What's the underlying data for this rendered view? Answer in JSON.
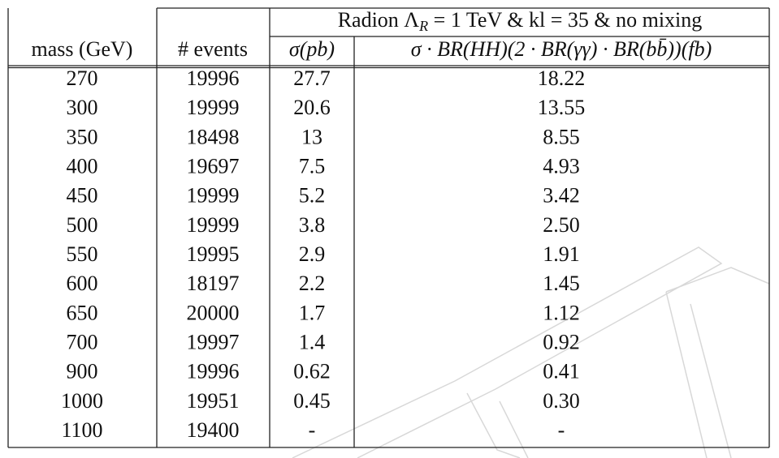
{
  "table": {
    "group_header": [
      "Radion Λ",
      "R",
      " = 1 TeV & kl = 35 & no mixing"
    ],
    "columns": [
      "mass (GeV)",
      "# events",
      "σ(pb)",
      "σ · BR(HH)(2 · BR(γγ) · BR(bb̄))(fb)"
    ],
    "rows": [
      [
        "270",
        "19996",
        "27.7",
        "18.22"
      ],
      [
        "300",
        "19999",
        "20.6",
        "13.55"
      ],
      [
        "350",
        "18498",
        "13",
        "8.55"
      ],
      [
        "400",
        "19697",
        "7.5",
        "4.93"
      ],
      [
        "450",
        "19999",
        "5.2",
        "3.42"
      ],
      [
        "500",
        "19999",
        "3.8",
        "2.50"
      ],
      [
        "550",
        "19995",
        "2.9",
        "1.91"
      ],
      [
        "600",
        "18197",
        "2.2",
        "1.45"
      ],
      [
        "650",
        "20000",
        "1.7",
        "1.12"
      ],
      [
        "700",
        "19997",
        "1.4",
        "0.92"
      ],
      [
        "900",
        "19996",
        "0.62",
        "0.41"
      ],
      [
        "1000",
        "19951",
        "0.45",
        "0.30"
      ],
      [
        "1100",
        "19400",
        "-",
        "-"
      ]
    ]
  }
}
